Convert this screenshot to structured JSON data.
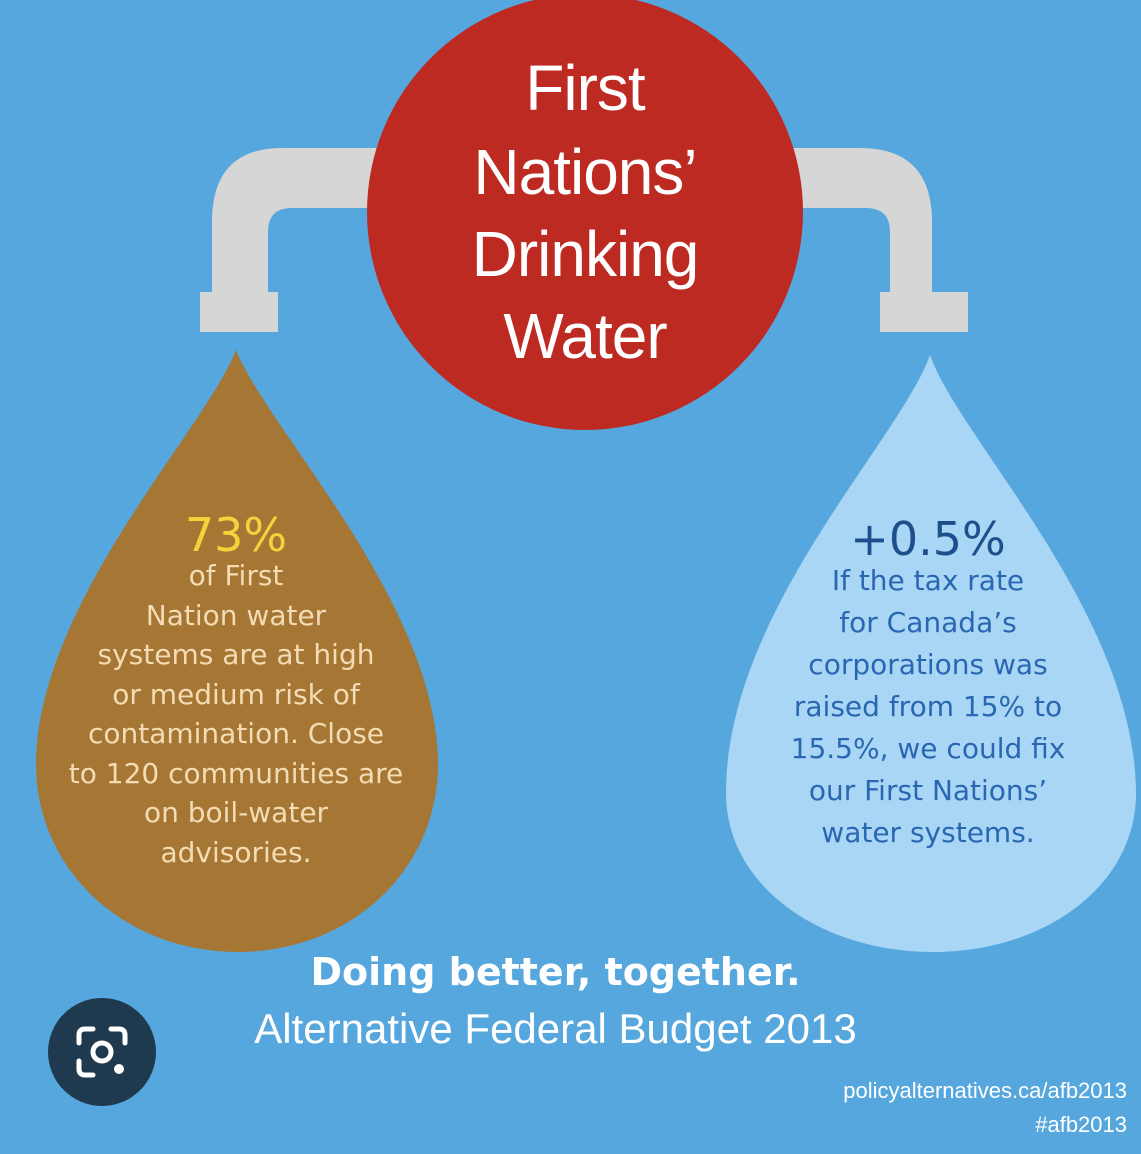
{
  "colors": {
    "background": "#56a7dd",
    "circle": "#bd2a22",
    "pipe": "#d6d6d6",
    "left_drop": "#a67634",
    "right_drop": "#a9d6f4",
    "left_percent": "#f4d23c",
    "right_percent": "#1d4f8c"
  },
  "title": {
    "lines": [
      "First",
      "Nations’",
      "Drinking",
      "Water"
    ]
  },
  "left_drop": {
    "percent": "73%",
    "lines": [
      "of First",
      "Nation water",
      "systems are at high",
      "or medium risk of",
      "contamination. Close",
      "to 120 communities are",
      "on boil-water",
      "advisories."
    ]
  },
  "right_drop": {
    "percent": "+0.5%",
    "lines": [
      "If the tax rate",
      "for Canada’s",
      "corporations was",
      "raised from 15% to",
      "15.5%, we could fix",
      "our First Nations’",
      "water systems."
    ]
  },
  "tagline": {
    "line1": "Doing better, together.",
    "line2": "Alternative Federal Budget 2013"
  },
  "footer": {
    "url": "policyalternatives.ca/afb2013",
    "hashtag": "#afb2013"
  },
  "overlay": {
    "icon": "lens-search-icon"
  }
}
